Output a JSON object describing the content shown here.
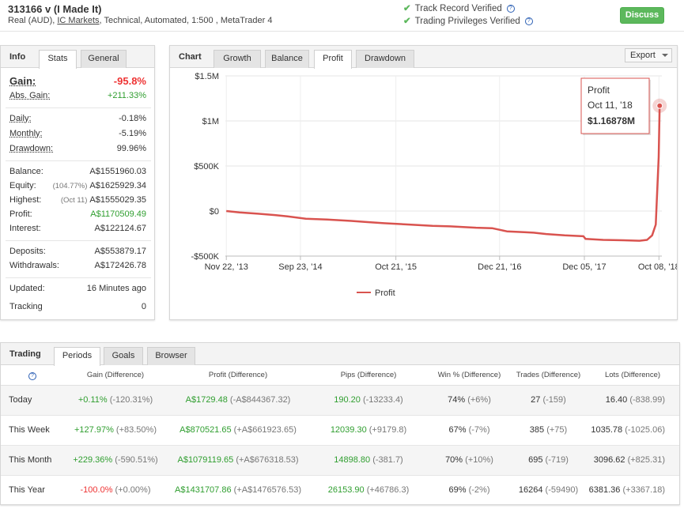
{
  "header": {
    "title": "313166 v (I Made It)",
    "sub_prefix": "Real (AUD), ",
    "broker": "IC Markets",
    "sub_suffix": ", Technical, Automated, 1:500 , MetaTrader 4",
    "track_record": "Track Record Verified",
    "trading_privileges": "Trading Privileges Verified",
    "discuss_label": "Discuss"
  },
  "info": {
    "title": "Info",
    "tabs": [
      "Stats",
      "General"
    ],
    "gain_label": "Gain:",
    "gain_value": "-95.8%",
    "abs_gain_label": "Abs. Gain:",
    "abs_gain_value": "+211.33%",
    "daily_label": "Daily:",
    "daily_value": "-0.18%",
    "monthly_label": "Monthly:",
    "monthly_value": "-5.19%",
    "drawdown_label": "Drawdown:",
    "drawdown_value": "99.96%",
    "balance_label": "Balance:",
    "balance_value": "A$1551960.03",
    "equity_label": "Equity:",
    "equity_pct": "(104.77%)",
    "equity_value": "A$1625929.34",
    "highest_label": "Highest:",
    "highest_date": "(Oct 11)",
    "highest_value": "A$1555029.35",
    "profit_label": "Profit:",
    "profit_value": "A$1170509.49",
    "interest_label": "Interest:",
    "interest_value": "A$122124.67",
    "deposits_label": "Deposits:",
    "deposits_value": "A$553879.17",
    "withdrawals_label": "Withdrawals:",
    "withdrawals_value": "A$172426.78",
    "updated_label": "Updated:",
    "updated_value": "16 Minutes ago",
    "tracking_label": "Tracking",
    "tracking_value": "0"
  },
  "chart_panel": {
    "title": "Chart",
    "tabs": [
      "Growth",
      "Balance",
      "Profit",
      "Drawdown"
    ],
    "active_tab": "Profit",
    "export_label": "Export"
  },
  "chart_data": {
    "type": "line",
    "title": "",
    "xlabel": "",
    "ylabel": "",
    "y_ticks": [
      "$1.5M",
      "$1M",
      "$500K",
      "$0",
      "-$500K"
    ],
    "y_tick_values": [
      1500000,
      1000000,
      500000,
      0,
      -500000
    ],
    "ylim": [
      -500000,
      1500000
    ],
    "x_tick_labels": [
      "Nov 22, '13",
      "Sep 23, '14",
      "Oct 21, '15",
      "Dec 21, '16",
      "Dec 05, '17",
      "Oct 08, '18"
    ],
    "x_tick_dates": [
      "2013-11-22",
      "2014-09-23",
      "2015-10-21",
      "2016-12-21",
      "2017-12-05",
      "2018-10-08"
    ],
    "xlim": [
      "2013-11-18",
      "2018-10-20"
    ],
    "grid": true,
    "legend_position": "bottom",
    "color": "#d9534f",
    "series": [
      {
        "name": "Profit",
        "x": [
          "2013-11-22",
          "2014-01-15",
          "2014-04-01",
          "2014-06-10",
          "2014-08-01",
          "2014-10-15",
          "2015-01-10",
          "2015-04-20",
          "2015-06-15",
          "2015-09-01",
          "2015-12-15",
          "2016-03-20",
          "2016-06-01",
          "2016-09-15",
          "2016-11-20",
          "2017-01-20",
          "2017-04-01",
          "2017-05-10",
          "2017-07-01",
          "2017-09-15",
          "2017-12-01",
          "2017-12-10",
          "2018-02-20",
          "2018-05-15",
          "2018-07-20",
          "2018-08-20",
          "2018-09-10",
          "2018-09-25",
          "2018-10-02",
          "2018-10-07",
          "2018-10-11"
        ],
        "values": [
          0,
          -15000,
          -30000,
          -45000,
          -60000,
          -85000,
          -95000,
          -110000,
          -120000,
          -135000,
          -150000,
          -165000,
          -170000,
          -185000,
          -190000,
          -225000,
          -235000,
          -240000,
          -255000,
          -270000,
          -280000,
          -310000,
          -320000,
          -325000,
          -330000,
          -320000,
          -270000,
          -150000,
          300000,
          600000,
          1168780
        ]
      }
    ],
    "tooltip": {
      "series": "Profit",
      "date": "Oct 11, '18",
      "value": "$1.16878M"
    }
  },
  "trading": {
    "title": "Trading",
    "tabs": [
      "Periods",
      "Goals",
      "Browser"
    ],
    "columns": [
      "Gain (Difference)",
      "Profit (Difference)",
      "Pips (Difference)",
      "Win % (Difference)",
      "Trades (Difference)",
      "Lots (Difference)"
    ],
    "rows": [
      {
        "period": "Today",
        "gain": "+0.11%",
        "gain_diff": "(-120.31%)",
        "profit": "A$1729.48",
        "profit_diff": "(-A$844367.32)",
        "pips": "190.20",
        "pips_diff": "(-13233.4)",
        "win": "74%",
        "win_diff": "(+6%)",
        "trades": "27",
        "trades_diff": "(-159)",
        "lots": "16.40",
        "lots_diff": "(-838.99)"
      },
      {
        "period": "This Week",
        "gain": "+127.97%",
        "gain_diff": "(+83.50%)",
        "profit": "A$870521.65",
        "profit_diff": "(+A$661923.65)",
        "pips": "12039.30",
        "pips_diff": "(+9179.8)",
        "win": "67%",
        "win_diff": "(-7%)",
        "trades": "385",
        "trades_diff": "(+75)",
        "lots": "1035.78",
        "lots_diff": "(-1025.06)"
      },
      {
        "period": "This Month",
        "gain": "+229.36%",
        "gain_diff": "(-590.51%)",
        "profit": "A$1079119.65",
        "profit_diff": "(+A$676318.53)",
        "pips": "14898.80",
        "pips_diff": "(-381.7)",
        "win": "70%",
        "win_diff": "(+10%)",
        "trades": "695",
        "trades_diff": "(-719)",
        "lots": "3096.62",
        "lots_diff": "(+825.31)"
      },
      {
        "period": "This Year",
        "gain": "-100.0%",
        "gain_diff": "(+0.00%)",
        "profit": "A$1431707.86",
        "profit_diff": "(+A$1476576.53)",
        "pips": "26153.90",
        "pips_diff": "(+46786.3)",
        "win": "69%",
        "win_diff": "(-2%)",
        "trades": "16264",
        "trades_diff": "(-59490)",
        "lots": "6381.36",
        "lots_diff": "(+3367.18)"
      }
    ]
  }
}
